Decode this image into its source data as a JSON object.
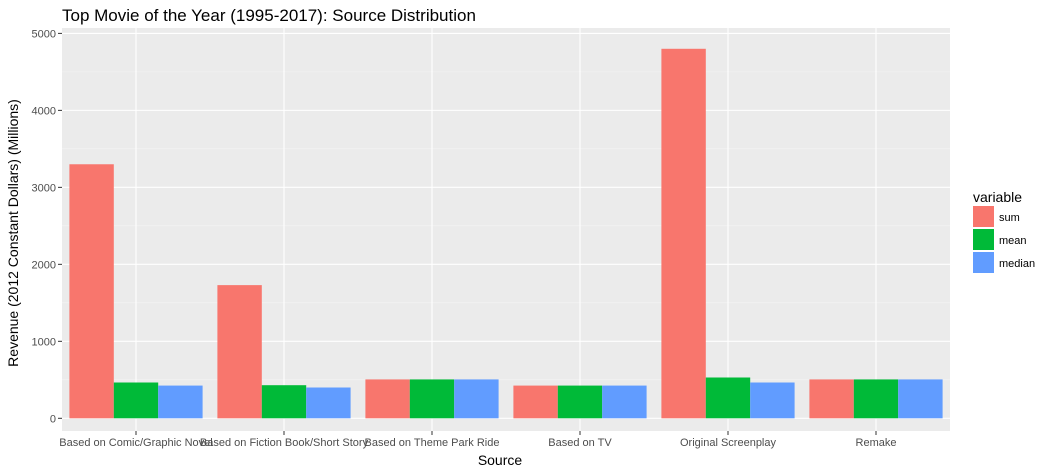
{
  "chart_data": {
    "type": "bar",
    "title": "Top Movie of the Year (1995-2017): Source Distribution",
    "xlabel": "Source",
    "ylabel": "Revenue (2012 Constant Dollars) (Millions)",
    "categories": [
      "Based on Comic/Graphic Novel",
      "Based on Fiction Book/Short Story",
      "Based on Theme Park Ride",
      "Based on TV",
      "Original Screenplay",
      "Remake"
    ],
    "series": [
      {
        "name": "sum",
        "color": "#F8766D",
        "values": [
          3300,
          1730,
          505,
          425,
          4800,
          505
        ]
      },
      {
        "name": "mean",
        "color": "#00BA38",
        "values": [
          465,
          430,
          505,
          425,
          530,
          505
        ]
      },
      {
        "name": "median",
        "color": "#619CFF",
        "values": [
          425,
          400,
          505,
          425,
          465,
          505
        ]
      }
    ],
    "ylim": [
      -165,
      5070
    ],
    "yticks": [
      0,
      1000,
      2000,
      3000,
      4000,
      5000
    ],
    "legend": {
      "title": "variable",
      "position": "right"
    },
    "grid": true,
    "panel_background": "#EBEBEB"
  }
}
